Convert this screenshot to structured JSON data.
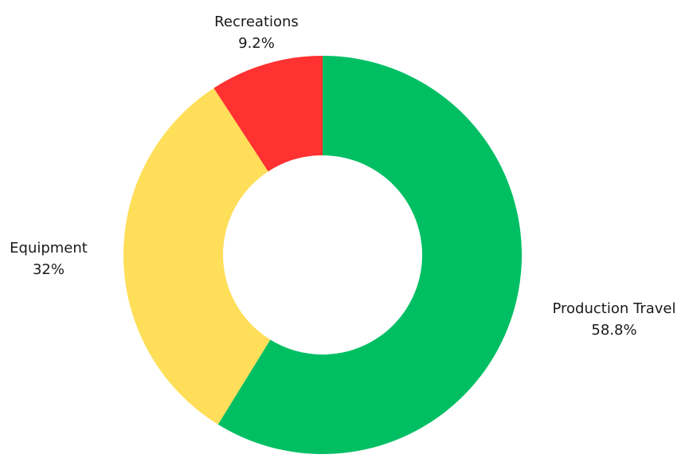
{
  "chart_data": {
    "type": "pie",
    "variant": "donut",
    "title": "",
    "legend": "none",
    "slices": [
      {
        "label": "Production Travel",
        "value": 58.8,
        "value_label": "58.8%",
        "color": "#00bf63"
      },
      {
        "label": "Equipment",
        "value": 32,
        "value_label": "32%",
        "color": "#ffde59"
      },
      {
        "label": "Recreations",
        "value": 9.2,
        "value_label": "9.2%",
        "color": "#ff3131"
      }
    ]
  }
}
